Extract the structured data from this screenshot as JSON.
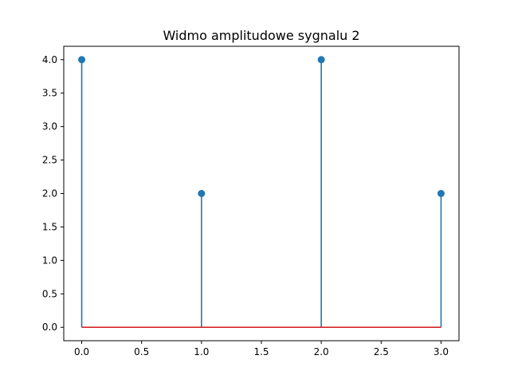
{
  "chart_data": {
    "type": "stem",
    "title": "Widmo amplitudowe sygnalu 2",
    "xlabel": "",
    "ylabel": "",
    "x": [
      0,
      1,
      2,
      3
    ],
    "values": [
      4.0,
      2.0,
      4.0,
      2.0
    ],
    "xlim": [
      -0.15,
      3.15
    ],
    "ylim": [
      -0.2,
      4.2
    ],
    "xticks": [
      0.0,
      0.5,
      1.0,
      1.5,
      2.0,
      2.5,
      3.0
    ],
    "xtick_labels": [
      "0.0",
      "0.5",
      "1.0",
      "1.5",
      "2.0",
      "2.5",
      "3.0"
    ],
    "yticks": [
      0.0,
      0.5,
      1.0,
      1.5,
      2.0,
      2.5,
      3.0,
      3.5,
      4.0
    ],
    "ytick_labels": [
      "0.0",
      "0.5",
      "1.0",
      "1.5",
      "2.0",
      "2.5",
      "3.0",
      "3.5",
      "4.0"
    ],
    "grid": false,
    "stem_color": "#1f77b4",
    "baseline_color": "#d62728",
    "baseline_value": 0
  }
}
